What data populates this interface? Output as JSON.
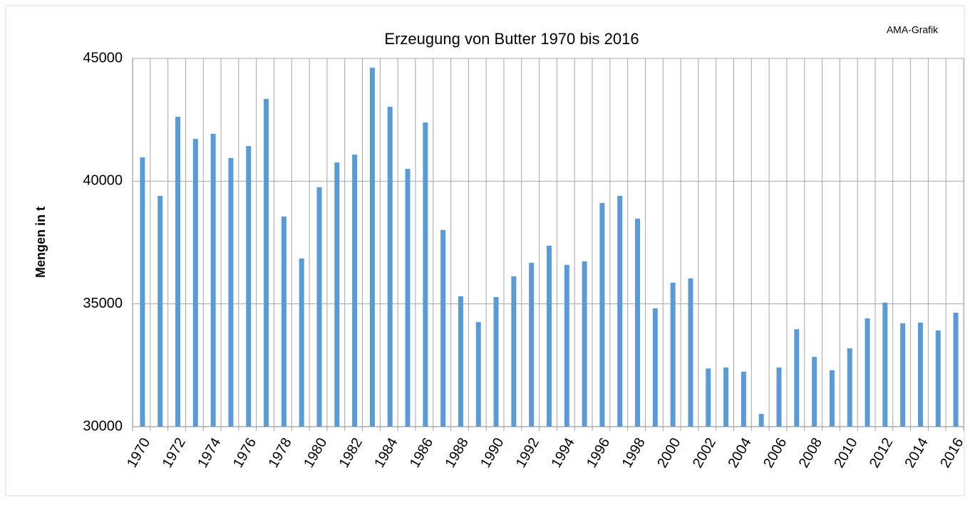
{
  "chart_data": {
    "type": "bar",
    "title": "Erzeugung von Butter 1970 bis 2016",
    "source": "AMA-Grafik",
    "y_label": "Mengen in t",
    "categories": [
      "1970",
      null,
      "1972",
      null,
      "1974",
      null,
      "1976",
      null,
      "1978",
      null,
      "1980",
      null,
      "1982",
      null,
      "1984",
      null,
      "1986",
      null,
      "1988",
      null,
      "1990",
      null,
      "1992",
      null,
      "1994",
      null,
      "1996",
      null,
      "1998",
      null,
      "2000",
      null,
      "2002",
      null,
      "2004",
      null,
      "2006",
      null,
      "2008",
      null,
      "2010",
      null,
      "2012",
      null,
      "2014",
      null,
      "2016"
    ],
    "values": [
      40970,
      39400,
      42620,
      41720,
      41930,
      40940,
      41430,
      43350,
      38560,
      36850,
      39750,
      40760,
      41080,
      44620,
      43030,
      40500,
      42390,
      38010,
      35310,
      34260,
      35280,
      36120,
      36670,
      37370,
      36590,
      36730,
      39110,
      39400,
      38470,
      34820,
      35860,
      36040,
      32370,
      32410,
      32240,
      30520,
      32410,
      33970,
      32840,
      32300,
      33190,
      34410,
      35050,
      34210,
      34240,
      33920,
      34640
    ],
    "color": "#5b9bd5",
    "ylim": [
      30000,
      45000
    ],
    "yticks": [
      30000,
      35000,
      40000,
      45000
    ],
    "grid": true
  }
}
